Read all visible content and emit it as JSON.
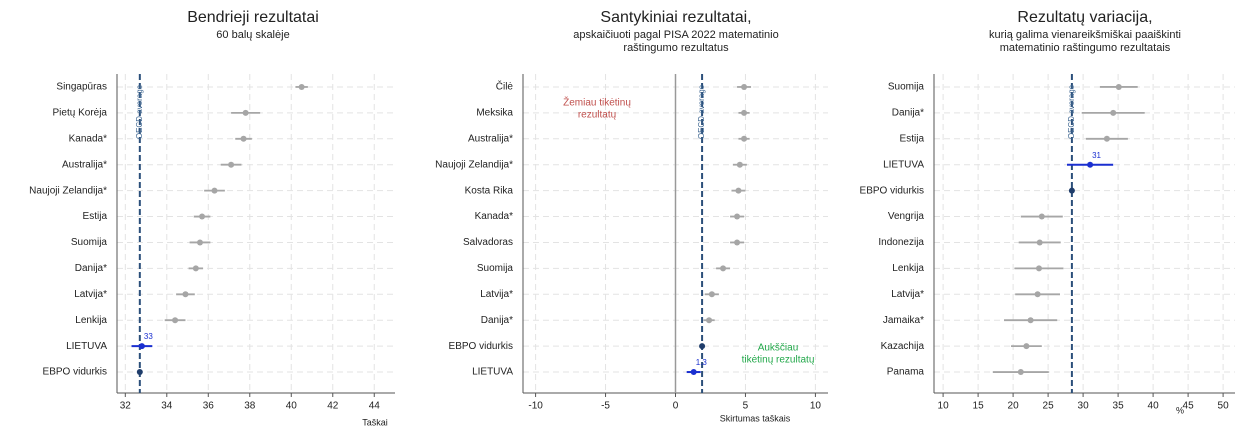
{
  "chart_data": [
    {
      "type": "dot",
      "title": "Bendrieji rezultatai",
      "subtitle": [
        "60 balų skalėje"
      ],
      "xlabel": "Taškai",
      "categories": [
        "Singapūras",
        "Pietų Korėja",
        "Kanada*",
        "Australija*",
        "Naujoji Zelandija*",
        "Estija",
        "Suomija",
        "Danija*",
        "Latvija*",
        "Lenkija",
        "LIETUVA",
        "EBPO vidurkis"
      ],
      "values": [
        40.5,
        37.8,
        37.7,
        37.1,
        36.3,
        35.7,
        35.6,
        35.4,
        34.9,
        34.4,
        32.8,
        32.7
      ],
      "errors": [
        0.3,
        0.7,
        0.4,
        0.5,
        0.5,
        0.4,
        0.5,
        0.35,
        0.45,
        0.5,
        0.5,
        0.1
      ],
      "value_labels": [
        null,
        null,
        null,
        null,
        null,
        null,
        null,
        null,
        null,
        null,
        "33",
        null
      ],
      "point_colors": [
        "#a6a6a6",
        "#a6a6a6",
        "#a6a6a6",
        "#a6a6a6",
        "#a6a6a6",
        "#a6a6a6",
        "#a6a6a6",
        "#a6a6a6",
        "#a6a6a6",
        "#a6a6a6",
        "#1a2fd0",
        "#1f3d6b"
      ],
      "reference_line": 32.7,
      "reference_label": "OECD average",
      "zero_line": false,
      "xlim": [
        31.6,
        45
      ],
      "xticks": [
        32,
        34,
        36,
        38,
        40,
        42,
        44
      ],
      "grid": true
    },
    {
      "type": "dot",
      "title": "Santykiniai rezultatai,",
      "subtitle": [
        "apskaičiuoti pagal PISA 2022 matematinio",
        "raštingumo rezultatus"
      ],
      "xlabel": "Skirtumas taškais",
      "categories": [
        "Čilė",
        "Meksika",
        "Australija*",
        "Naujoji Zelandija*",
        "Kosta Rika",
        "Kanada*",
        "Salvadoras",
        "Suomija",
        "Latvija*",
        "Danija*",
        "EBPO vidurkis",
        "LIETUVA"
      ],
      "values": [
        4.9,
        4.9,
        4.9,
        4.6,
        4.5,
        4.4,
        4.4,
        3.4,
        2.6,
        2.4,
        1.9,
        1.3
      ],
      "errors": [
        0.5,
        0.4,
        0.4,
        0.5,
        0.5,
        0.5,
        0.5,
        0.5,
        0.5,
        0.4,
        0.1,
        0.5
      ],
      "value_labels": [
        null,
        null,
        null,
        null,
        null,
        null,
        null,
        null,
        null,
        null,
        null,
        "1.3"
      ],
      "point_colors": [
        "#a6a6a6",
        "#a6a6a6",
        "#a6a6a6",
        "#a6a6a6",
        "#a6a6a6",
        "#a6a6a6",
        "#a6a6a6",
        "#a6a6a6",
        "#a6a6a6",
        "#a6a6a6",
        "#1f3d6b",
        "#1a2fd0"
      ],
      "reference_line": 1.9,
      "reference_label": "OECD average",
      "zero_line": true,
      "annotations": [
        {
          "lines": [
            "Žemiau tikėtinų",
            "rezultatų"
          ],
          "color": "#c0504d"
        },
        {
          "lines": [
            "Aukščiau",
            "tikėtinų rezultatų"
          ],
          "color": "#22a84a"
        }
      ],
      "xlim": [
        -10.9,
        10.9
      ],
      "xticks": [
        -10,
        -5,
        0,
        5,
        10
      ],
      "grid": true
    },
    {
      "type": "dot",
      "title": "Rezultatų variacija,",
      "subtitle": [
        "kurią galima vienareikšmiškai paaiškinti",
        "matematinio raštingumo rezultatais"
      ],
      "xlabel": "%",
      "categories": [
        "Suomija",
        "Danija*",
        "Estija",
        "LIETUVA",
        "EBPO vidurkis",
        "Vengrija",
        "Indonezija",
        "Lenkija",
        "Latvija*",
        "Jamaika*",
        "Kazachija",
        "Panama"
      ],
      "values": [
        35.1,
        34.3,
        33.4,
        31,
        28.4,
        24.1,
        23.8,
        23.7,
        23.5,
        22.5,
        21.9,
        21.1
      ],
      "errors": [
        2.7,
        4.5,
        3,
        3.3,
        0.3,
        3,
        3,
        3.5,
        3.2,
        3.8,
        2.2,
        4
      ],
      "value_labels": [
        null,
        null,
        null,
        "31",
        null,
        null,
        null,
        null,
        null,
        null,
        null,
        null
      ],
      "point_colors": [
        "#a6a6a6",
        "#a6a6a6",
        "#a6a6a6",
        "#1a2fd0",
        "#1f3d6b",
        "#a6a6a6",
        "#a6a6a6",
        "#a6a6a6",
        "#a6a6a6",
        "#a6a6a6",
        "#a6a6a6",
        "#a6a6a6"
      ],
      "reference_line": 28.4,
      "reference_label": "OECD average",
      "zero_line": false,
      "xlim": [
        8.7,
        51.7
      ],
      "xticks": [
        10,
        15,
        20,
        25,
        30,
        35,
        40,
        45,
        50
      ],
      "grid": true
    }
  ]
}
